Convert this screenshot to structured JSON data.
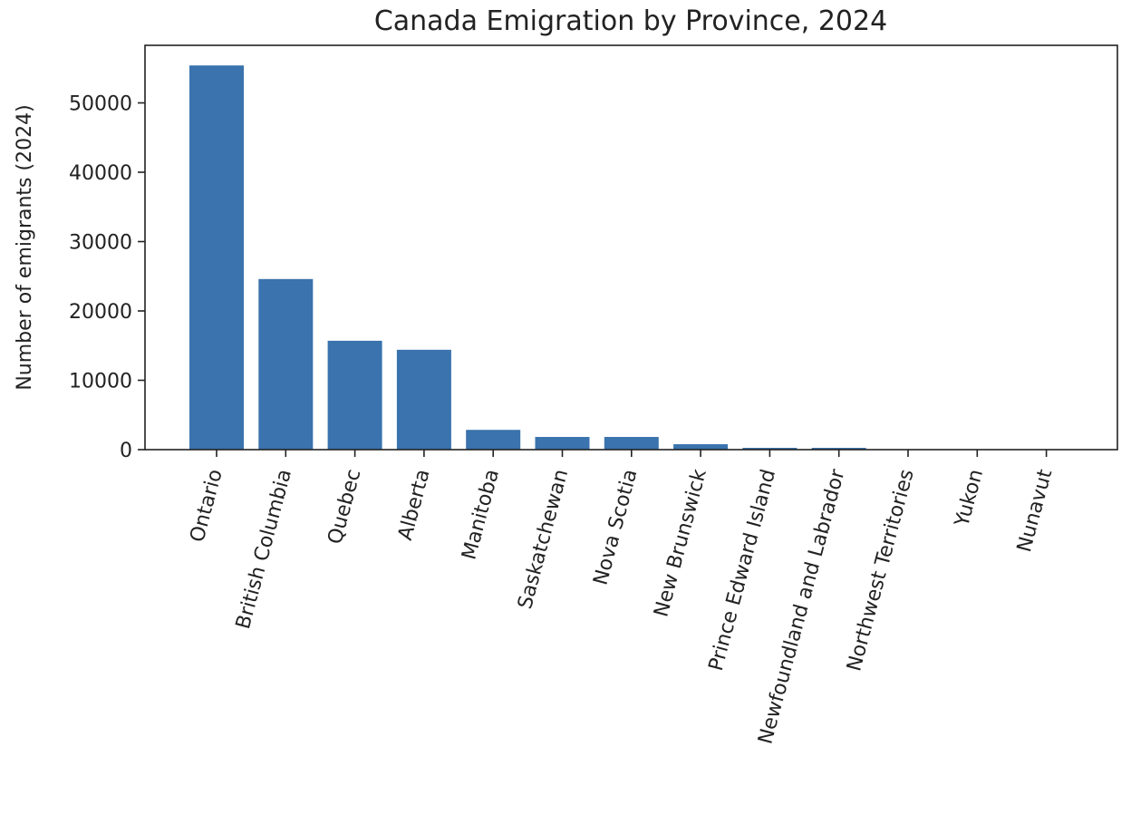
{
  "chart_data": {
    "type": "bar",
    "title": "Canada Emigration by Province, 2024",
    "xlabel": "",
    "ylabel": "Number of emigrants (2024)",
    "categories": [
      "Ontario",
      "British Columbia",
      "Quebec",
      "Alberta",
      "Manitoba",
      "Saskatchewan",
      "Nova Scotia",
      "New Brunswick",
      "Prince Edward Island",
      "Newfoundland and Labrador",
      "Northwest Territories",
      "Yukon",
      "Nunavut"
    ],
    "values": [
      55400,
      24600,
      15700,
      14400,
      2850,
      1830,
      1830,
      780,
      260,
      260,
      30,
      20,
      10
    ],
    "ylim": [
      0,
      58000
    ],
    "yticks": [
      0,
      10000,
      20000,
      30000,
      40000,
      50000
    ],
    "grid": false,
    "bar_color": "#3a73ad"
  }
}
